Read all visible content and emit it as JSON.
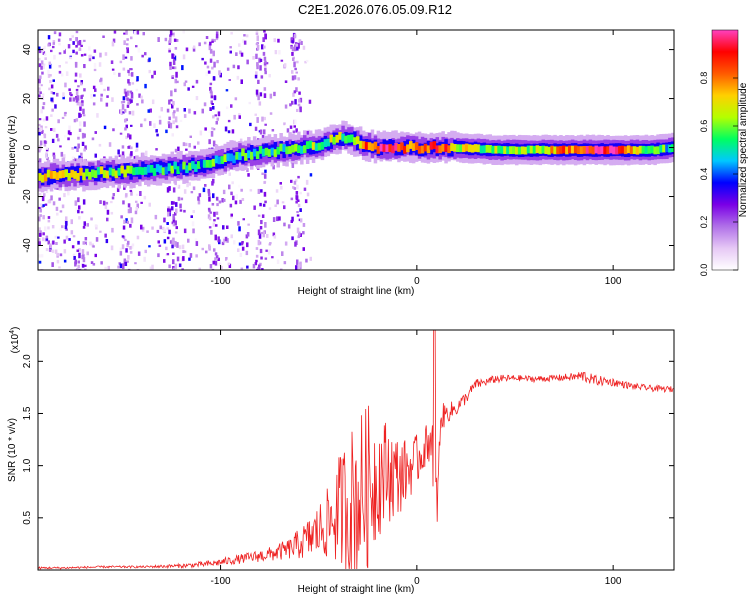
{
  "title": "C2E1.2026.076.05.09.R12",
  "chart_data": [
    {
      "type": "heatmap",
      "title": "C2E1.2026.076.05.09.R12",
      "xlabel": "Height of straight line (km)",
      "ylabel": "Frequency (Hz)",
      "xlim": [
        -193,
        131
      ],
      "ylim": [
        -50,
        48
      ],
      "x_ticks": [
        -100,
        0,
        100
      ],
      "x_tick_labels": [
        "-100",
        "0",
        "100"
      ],
      "y_ticks": [
        -40,
        -20,
        0,
        20,
        40
      ],
      "y_tick_labels": [
        "-40",
        "-20",
        "0",
        "20",
        "40"
      ],
      "colorbar": {
        "label": "Normalized spectral amplitude",
        "range": [
          0,
          1
        ],
        "ticks": [
          0.0,
          0.2,
          0.4,
          0.6,
          0.8
        ],
        "tick_labels": [
          "0.0",
          "0.2",
          "0.4",
          "0.6",
          "0.8"
        ],
        "colors": [
          "#ffffff",
          "#e6c8f5",
          "#b070e8",
          "#7a00e6",
          "#0000ff",
          "#00c8ff",
          "#00ff60",
          "#b4ff00",
          "#ffd000",
          "#ff5a00",
          "#ff0000",
          "#ff40c0"
        ]
      },
      "ridge": {
        "x": [
          -193,
          -180,
          -170,
          -160,
          -150,
          -140,
          -130,
          -120,
          -110,
          -100,
          -90,
          -80,
          -70,
          -60,
          -50,
          -40,
          -35,
          -30,
          -25,
          -20,
          -10,
          0,
          10,
          20,
          40,
          60,
          80,
          100,
          110,
          120,
          131
        ],
        "y": [
          -12,
          -11,
          -11,
          -10,
          -10,
          -9,
          -9,
          -8,
          -7,
          -5,
          -3,
          -2,
          -1,
          0,
          1,
          4,
          4,
          2,
          1,
          0,
          0,
          0,
          0,
          0,
          -1,
          -1,
          -1,
          -1,
          -1,
          -1,
          0
        ],
        "strength": [
          0.7,
          0.65,
          0.62,
          0.6,
          0.58,
          0.55,
          0.55,
          0.5,
          0.5,
          0.55,
          0.5,
          0.5,
          0.5,
          0.55,
          0.6,
          0.6,
          0.55,
          0.7,
          0.85,
          0.95,
          0.85,
          0.8,
          0.9,
          0.7,
          0.6,
          0.6,
          0.85,
          0.95,
          0.7,
          0.55,
          0.5
        ]
      }
    },
    {
      "type": "line",
      "xlabel": "Height of straight line (km)",
      "ylabel": "SNR (10 * v/v)",
      "multiplier_label": "(x10",
      "multiplier_exp": "4",
      "xlim": [
        -193,
        131
      ],
      "ylim": [
        0,
        2.3
      ],
      "x_ticks": [
        -100,
        0,
        100
      ],
      "x_tick_labels": [
        "-100",
        "0",
        "100"
      ],
      "y_ticks": [
        0.5,
        1.0,
        1.5,
        2.0
      ],
      "y_tick_labels": [
        "0.5",
        "1.0",
        "1.5",
        "2.0"
      ],
      "color": "#ee2222",
      "series": [
        {
          "name": "SNR",
          "x": [
            -193,
            -180,
            -160,
            -140,
            -120,
            -105,
            -95,
            -85,
            -75,
            -65,
            -55,
            -45,
            -38,
            -32,
            -25,
            -20,
            -15,
            -10,
            -5,
            0,
            5,
            8,
            10,
            12,
            15,
            20,
            25,
            30,
            35,
            40,
            50,
            60,
            70,
            80,
            85,
            90,
            100,
            110,
            120,
            131
          ],
          "y": [
            0.02,
            0.02,
            0.03,
            0.03,
            0.04,
            0.06,
            0.09,
            0.12,
            0.15,
            0.2,
            0.3,
            0.45,
            0.6,
            0.65,
            0.8,
            0.9,
            0.95,
            0.9,
            0.95,
            1.05,
            1.2,
            1.3,
            0.4,
            1.45,
            1.5,
            1.55,
            1.65,
            1.78,
            1.8,
            1.83,
            1.84,
            1.83,
            1.84,
            1.85,
            1.86,
            1.82,
            1.8,
            1.76,
            1.74,
            1.73
          ],
          "noise": [
            0.01,
            0.01,
            0.01,
            0.01,
            0.02,
            0.03,
            0.04,
            0.05,
            0.07,
            0.1,
            0.2,
            0.35,
            0.6,
            0.8,
            0.8,
            0.6,
            0.5,
            0.4,
            0.3,
            0.25,
            0.2,
            0.2,
            0.05,
            0.15,
            0.1,
            0.08,
            0.06,
            0.05,
            0.04,
            0.04,
            0.03,
            0.03,
            0.03,
            0.04,
            0.06,
            0.05,
            0.04,
            0.03,
            0.03,
            0.03
          ]
        }
      ]
    }
  ]
}
